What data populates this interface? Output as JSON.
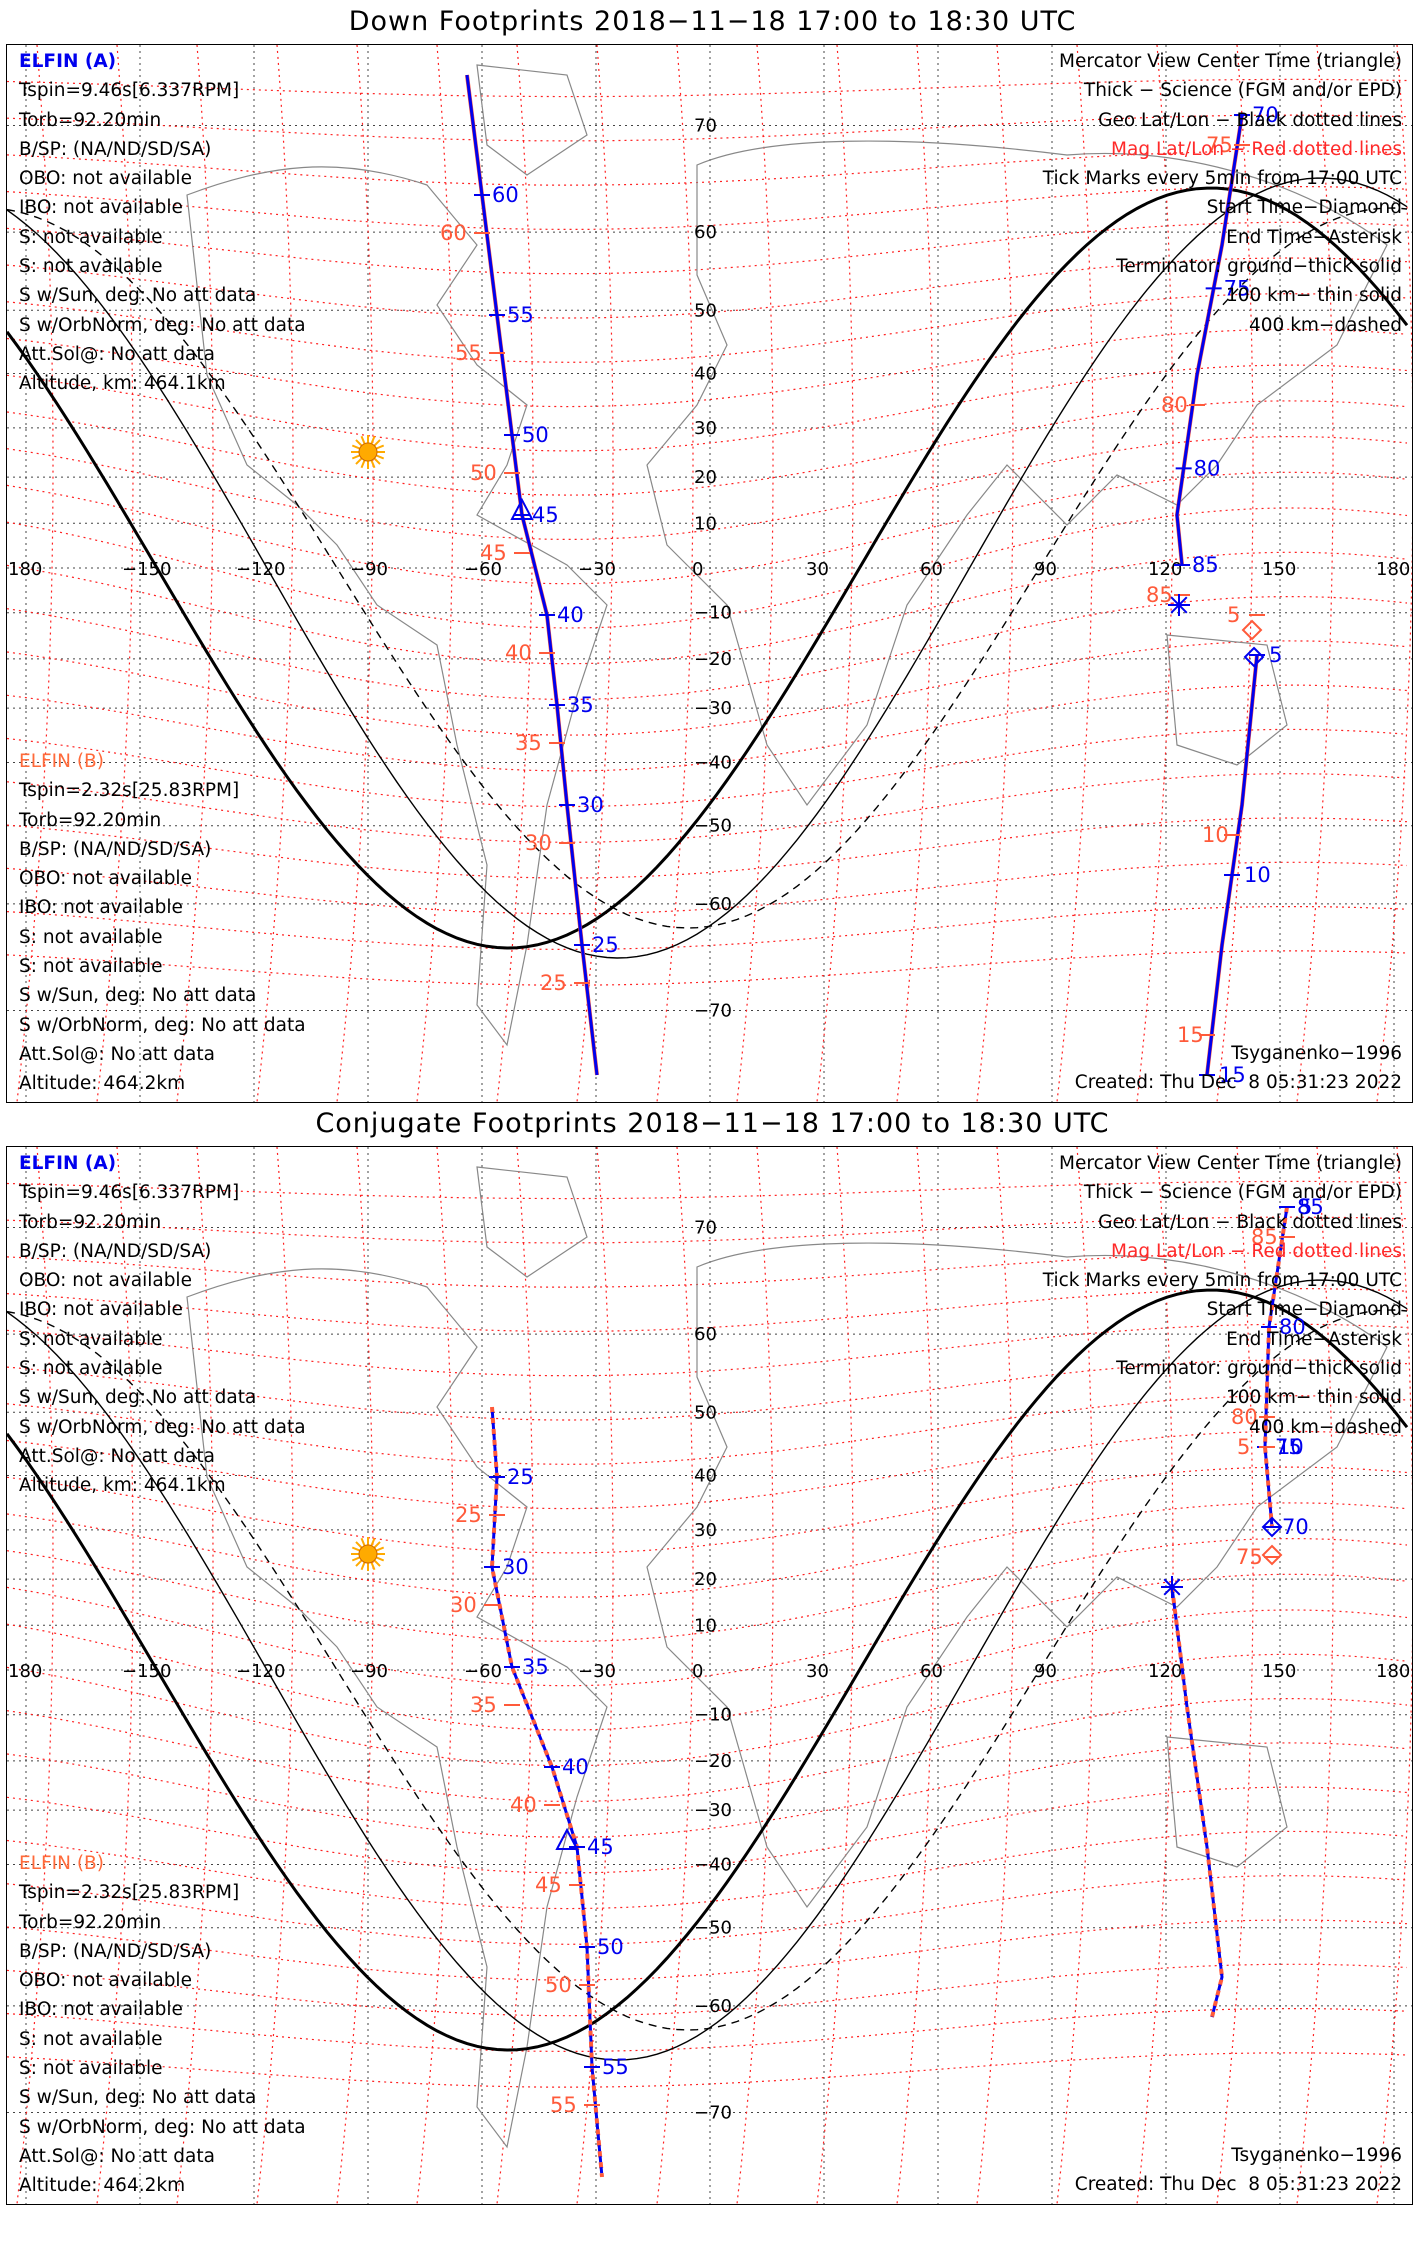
{
  "panels": [
    {
      "title": "Down Footprints 2018−11−18 17:00 to 18:30 UTC",
      "elfin_a": {
        "header": "ELFIN (A)",
        "lines": [
          "Tspin=9.46s[6.337RPM]",
          "Torb=92.20min",
          "B/SP: (NA/ND/SD/SA)",
          "OBO: not available",
          "IBO: not available",
          "S: not available",
          "S: not available",
          "S w/Sun, deg: No att data",
          "S w/OrbNorm, deg: No att data",
          "Att.Sol@: No att data",
          "Altitude, km: 464.1km"
        ]
      },
      "elfin_b": {
        "header": "ELFIN (B)",
        "lines": [
          "Tspin=2.32s[25.83RPM]",
          "Torb=92.20min",
          "B/SP: (NA/ND/SD/SA)",
          "OBO: not available",
          "IBO: not available",
          "S: not available",
          "S: not available",
          "S w/Sun, deg: No att data",
          "S w/OrbNorm, deg: No att data",
          "Att.Sol@: No att data",
          "Altitude: 464.2km"
        ]
      },
      "legend": [
        "Mercator View Center Time (triangle)",
        "Thick − Science (FGM and/or EPD)",
        "Geo Lat/Lon − Black dotted lines",
        "Mag Lat/Lon − Red dotted lines",
        "Tick Marks every 5min from 17:00 UTC",
        "Start Time−Diamond",
        "End Time−Asterisk",
        "Terminator: ground−thick solid",
        "100 km− thin solid",
        "400 km−dashed"
      ],
      "model": "Tsyganenko−1996",
      "created": "Created: Thu Dec  8 05:31:23 2022",
      "track_a_labels": [
        "60",
        "55",
        "50",
        "45",
        "40",
        "35",
        "30",
        "25"
      ],
      "track_b_labels": [
        "60",
        "55",
        "50",
        "45",
        "40",
        "35",
        "30",
        "25"
      ],
      "east_a_labels": [
        "70",
        "75",
        "80",
        "85"
      ],
      "east_b_labels": [
        "75",
        "80",
        "85"
      ],
      "south_a_labels": [
        "5",
        "10",
        "15"
      ],
      "south_b_labels": [
        "5",
        "10",
        "15"
      ]
    },
    {
      "title": "Conjugate Footprints 2018−11−18 17:00 to 18:30 UTC",
      "elfin_a": {
        "header": "ELFIN (A)",
        "lines": [
          "Tspin=9.46s[6.337RPM]",
          "Torb=92.20min",
          "B/SP: (NA/ND/SD/SA)",
          "OBO: not available",
          "IBO: not available",
          "S: not available",
          "S: not available",
          "S w/Sun, deg: No att data",
          "S w/OrbNorm, deg: No att data",
          "Att.Sol@: No att data",
          "Altitude, km: 464.1km"
        ]
      },
      "elfin_b": {
        "header": "ELFIN (B)",
        "lines": [
          "Tspin=2.32s[25.83RPM]",
          "Torb=92.20min",
          "B/SP: (NA/ND/SD/SA)",
          "OBO: not available",
          "IBO: not available",
          "S: not available",
          "S: not available",
          "S w/Sun, deg: No att data",
          "S w/OrbNorm, deg: No att data",
          "Att.Sol@: No att data",
          "Altitude: 464.2km"
        ]
      },
      "legend": [
        "Mercator View Center Time (triangle)",
        "Thick − Science (FGM and/or EPD)",
        "Geo Lat/Lon − Black dotted lines",
        "Mag Lat/Lon − Red dotted lines",
        "Tick Marks every 5min from 17:00 UTC",
        "Start Time−Diamond",
        "End Time−Asterisk",
        "Terminator: ground−thick solid",
        "100 km− thin solid",
        "400 km−dashed"
      ],
      "model": "Tsyganenko−1996",
      "created": "Created: Thu Dec  8 05:31:23 2022",
      "track_a_labels": [
        "25",
        "30",
        "35",
        "40",
        "45",
        "50",
        "55"
      ],
      "track_b_labels": [
        "25",
        "30",
        "35",
        "40",
        "45",
        "50",
        "55"
      ],
      "east_a_labels": [
        "85",
        "80",
        "75",
        "70"
      ],
      "east_b_labels": [
        "85",
        "80",
        "75"
      ],
      "north_a_labels": [
        "5",
        "10"
      ],
      "north_b_labels": [
        "5"
      ]
    }
  ],
  "axes": {
    "lon_ticks": [
      "180",
      "−150",
      "−120",
      "−90",
      "−60",
      "−30",
      "0",
      "30",
      "60",
      "90",
      "120",
      "150",
      "180"
    ],
    "lat_ticks": [
      "70",
      "60",
      "50",
      "40",
      "30",
      "20",
      "10",
      "−10",
      "−20",
      "−30",
      "−40",
      "−50",
      "−60",
      "−70"
    ]
  },
  "colors": {
    "elfin_a": "#0000ee",
    "elfin_b": "#ff5a3a",
    "mag_grid": "#ff0000",
    "sun": "#ffaa00"
  }
}
